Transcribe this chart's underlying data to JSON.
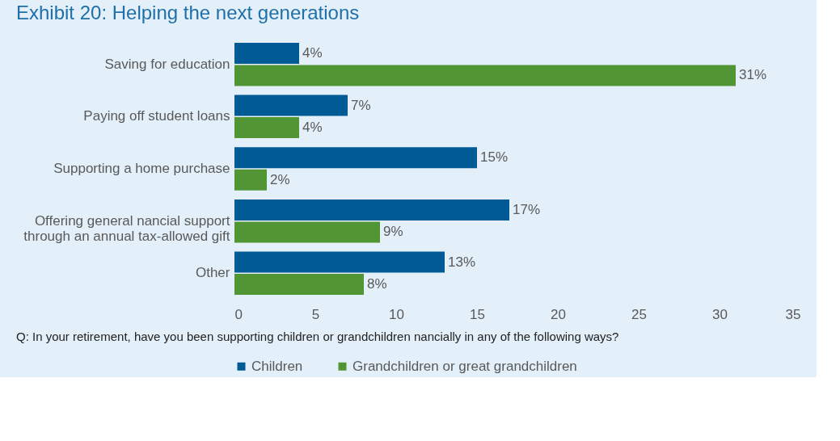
{
  "chart_data": {
    "type": "bar",
    "orientation": "horizontal",
    "title": "Exhibit 20: Helping the next generations",
    "categories": [
      "Saving for education",
      "Paying off student loans",
      "Supporting a home purchase",
      "Offering general  nancial support\nthrough an annual tax-allowed gift",
      "Other"
    ],
    "series": [
      {
        "name": "Children",
        "color": "#005a96",
        "values": [
          4,
          7,
          15,
          17,
          13
        ],
        "value_labels": [
          "4%",
          "7%",
          "15%",
          "17%",
          "13%"
        ]
      },
      {
        "name": "Grandchildren or great grandchildren",
        "color": "#529535",
        "values": [
          31,
          4,
          2,
          9,
          8
        ],
        "value_labels": [
          "31%",
          "4%",
          "2%",
          "9%",
          "8%"
        ]
      }
    ],
    "xlim": [
      0,
      35
    ],
    "xticks": [
      0,
      5,
      10,
      15,
      20,
      25,
      30,
      35
    ],
    "grid": false,
    "legend": "bottom",
    "annotations": [
      "Q: In your retirement, have you been supporting children or grandchildren  nancially in any of the following ways?"
    ]
  }
}
